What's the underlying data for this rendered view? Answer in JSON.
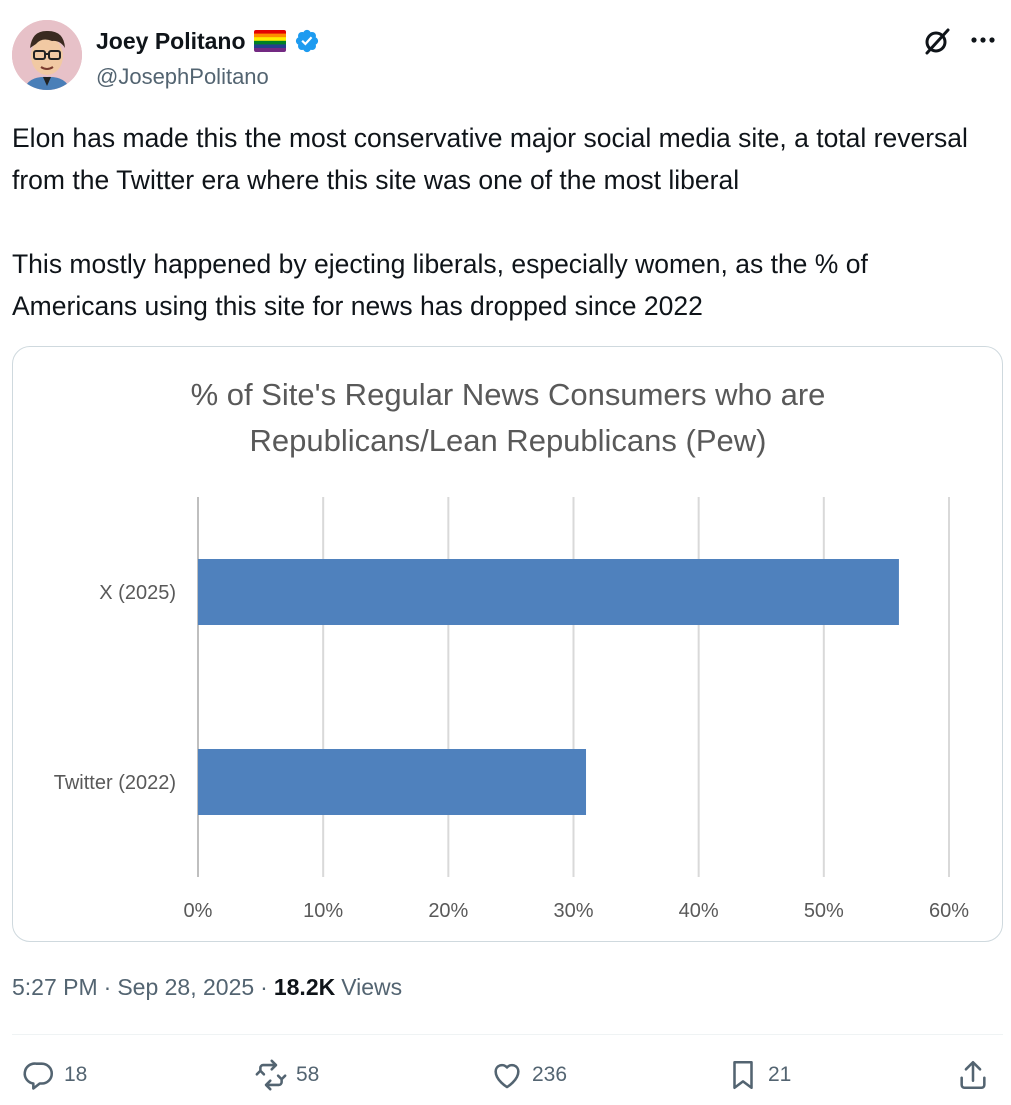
{
  "author": {
    "display_name": "Joey Politano",
    "handle": "@JosephPolitano",
    "avatar_icon": "avatar-icon",
    "badges": [
      "rainbow-flag-icon",
      "verified-badge-icon"
    ]
  },
  "header_icons": [
    "grok-icon",
    "more-icon"
  ],
  "tweet": {
    "text": "Elon has made this the most conservative major social media site, a total reversal from the Twitter era where this site was one of the most liberal\n\nThis mostly happened by ejecting liberals, especially women, as the % of Americans using this site for news has dropped since 2022"
  },
  "chart_data": {
    "type": "bar",
    "orientation": "horizontal",
    "title": "% of Site's Regular News Consumers who are Republicans/Lean Republicans (Pew)",
    "title_lines": [
      "% of Site's Regular News Consumers who are",
      "Republicans/Lean Republicans (Pew)"
    ],
    "categories": [
      "X (2025)",
      "Twitter (2022)"
    ],
    "values": [
      56,
      31
    ],
    "xlim": [
      0,
      60
    ],
    "x_ticks": [
      "0%",
      "10%",
      "20%",
      "30%",
      "40%",
      "50%",
      "60%"
    ],
    "grid": true,
    "bar_color": "#4f81bd",
    "xlabel": "",
    "ylabel": ""
  },
  "meta": {
    "time": "5:27 PM",
    "separator": "·",
    "date": "Sep 28, 2025",
    "views_count": "18.2K",
    "views_label": "Views"
  },
  "actions": {
    "reply": "18",
    "repost": "58",
    "like": "236",
    "bookmark": "21"
  },
  "colors": {
    "text_primary": "#0f1419",
    "text_secondary": "#536471",
    "verified": "#1d9bf0",
    "bar": "#4f81bd"
  }
}
